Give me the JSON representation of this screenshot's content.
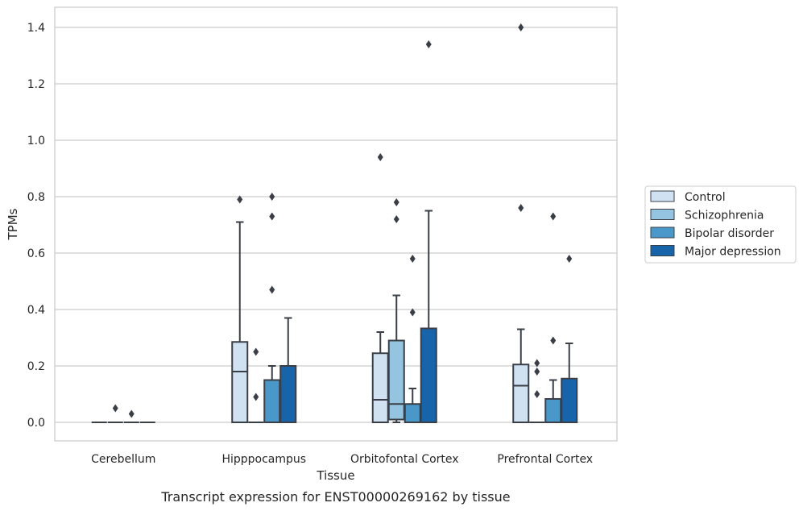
{
  "chart_data": {
    "type": "box",
    "caption": "Transcript expression for ENST00000269162 by tissue",
    "xlabel": "Tissue",
    "ylabel": "TPMs",
    "ylim": [
      -0.07,
      1.47
    ],
    "yticks": [
      0.0,
      0.2,
      0.4,
      0.6,
      0.8,
      1.0,
      1.2,
      1.4
    ],
    "ytick_labels": [
      "0.0",
      "0.2",
      "0.4",
      "0.6",
      "0.8",
      "1.0",
      "1.2",
      "1.4"
    ],
    "grid": "horizontal",
    "legend_position": "right",
    "categories": [
      "Cerebellum",
      "Hipppocampus",
      "Orbitofontal Cortex",
      "Prefrontal Cortex"
    ],
    "series": [
      {
        "name": "Control",
        "color": "#d0e1f2",
        "boxes": [
          {
            "q1": 0.0,
            "median": 0.0,
            "q3": 0.0,
            "whisker_low": 0.0,
            "whisker_high": 0.0,
            "outliers": []
          },
          {
            "q1": 0.0,
            "median": 0.18,
            "q3": 0.285,
            "whisker_low": 0.0,
            "whisker_high": 0.71,
            "outliers": [
              0.79
            ]
          },
          {
            "q1": 0.0,
            "median": 0.08,
            "q3": 0.245,
            "whisker_low": 0.0,
            "whisker_high": 0.32,
            "outliers": [
              0.94
            ]
          },
          {
            "q1": 0.0,
            "median": 0.13,
            "q3": 0.205,
            "whisker_low": 0.0,
            "whisker_high": 0.33,
            "outliers": [
              0.76,
              1.4
            ]
          }
        ]
      },
      {
        "name": "Schizophrenia",
        "color": "#94c4df",
        "boxes": [
          {
            "q1": 0.0,
            "median": 0.0,
            "q3": 0.0,
            "whisker_low": 0.0,
            "whisker_high": 0.0,
            "outliers": [
              0.05
            ]
          },
          {
            "q1": 0.0,
            "median": 0.0,
            "q3": 0.0,
            "whisker_low": 0.0,
            "whisker_high": 0.0,
            "outliers": [
              0.09,
              0.25
            ]
          },
          {
            "q1": 0.01,
            "median": 0.065,
            "q3": 0.29,
            "whisker_low": 0.0,
            "whisker_high": 0.45,
            "outliers": [
              0.72,
              0.78
            ]
          },
          {
            "q1": 0.0,
            "median": 0.0,
            "q3": 0.0,
            "whisker_low": 0.0,
            "whisker_high": 0.0,
            "outliers": [
              0.1,
              0.18,
              0.21
            ]
          }
        ]
      },
      {
        "name": "Bipolar disorder",
        "color": "#4a98c9",
        "boxes": [
          {
            "q1": 0.0,
            "median": 0.0,
            "q3": 0.0,
            "whisker_low": 0.0,
            "whisker_high": 0.0,
            "outliers": [
              0.03
            ]
          },
          {
            "q1": 0.0,
            "median": 0.0,
            "q3": 0.15,
            "whisker_low": 0.0,
            "whisker_high": 0.2,
            "outliers": [
              0.47,
              0.73,
              0.8
            ]
          },
          {
            "q1": 0.0,
            "median": 0.0,
            "q3": 0.065,
            "whisker_low": 0.0,
            "whisker_high": 0.12,
            "outliers": [
              0.39,
              0.58
            ]
          },
          {
            "q1": 0.0,
            "median": 0.0,
            "q3": 0.083,
            "whisker_low": 0.0,
            "whisker_high": 0.15,
            "outliers": [
              0.29,
              0.73
            ]
          }
        ]
      },
      {
        "name": "Major depression",
        "color": "#1764ab",
        "boxes": [
          {
            "q1": 0.0,
            "median": 0.0,
            "q3": 0.0,
            "whisker_low": 0.0,
            "whisker_high": 0.0,
            "outliers": []
          },
          {
            "q1": 0.0,
            "median": 0.0,
            "q3": 0.2,
            "whisker_low": 0.0,
            "whisker_high": 0.37,
            "outliers": []
          },
          {
            "q1": 0.0,
            "median": 0.0,
            "q3": 0.333,
            "whisker_low": 0.0,
            "whisker_high": 0.75,
            "outliers": [
              1.34
            ]
          },
          {
            "q1": 0.0,
            "median": 0.0,
            "q3": 0.155,
            "whisker_low": 0.0,
            "whisker_high": 0.28,
            "outliers": [
              0.58
            ]
          }
        ]
      }
    ]
  }
}
